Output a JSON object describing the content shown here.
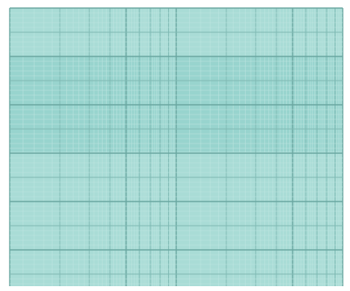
{
  "paper": {
    "kind": "semi-log graph paper",
    "x_scale": "log",
    "x_decades": 2,
    "y_scale": "linear",
    "colors": {
      "background": "#ffffff",
      "fill": "#a9dcd6",
      "fill_band": "#8fd0c9",
      "minor_line": "#bfe6e1",
      "major_line": "#7fb9b3",
      "bold_line": "#6aa7a1"
    }
  }
}
